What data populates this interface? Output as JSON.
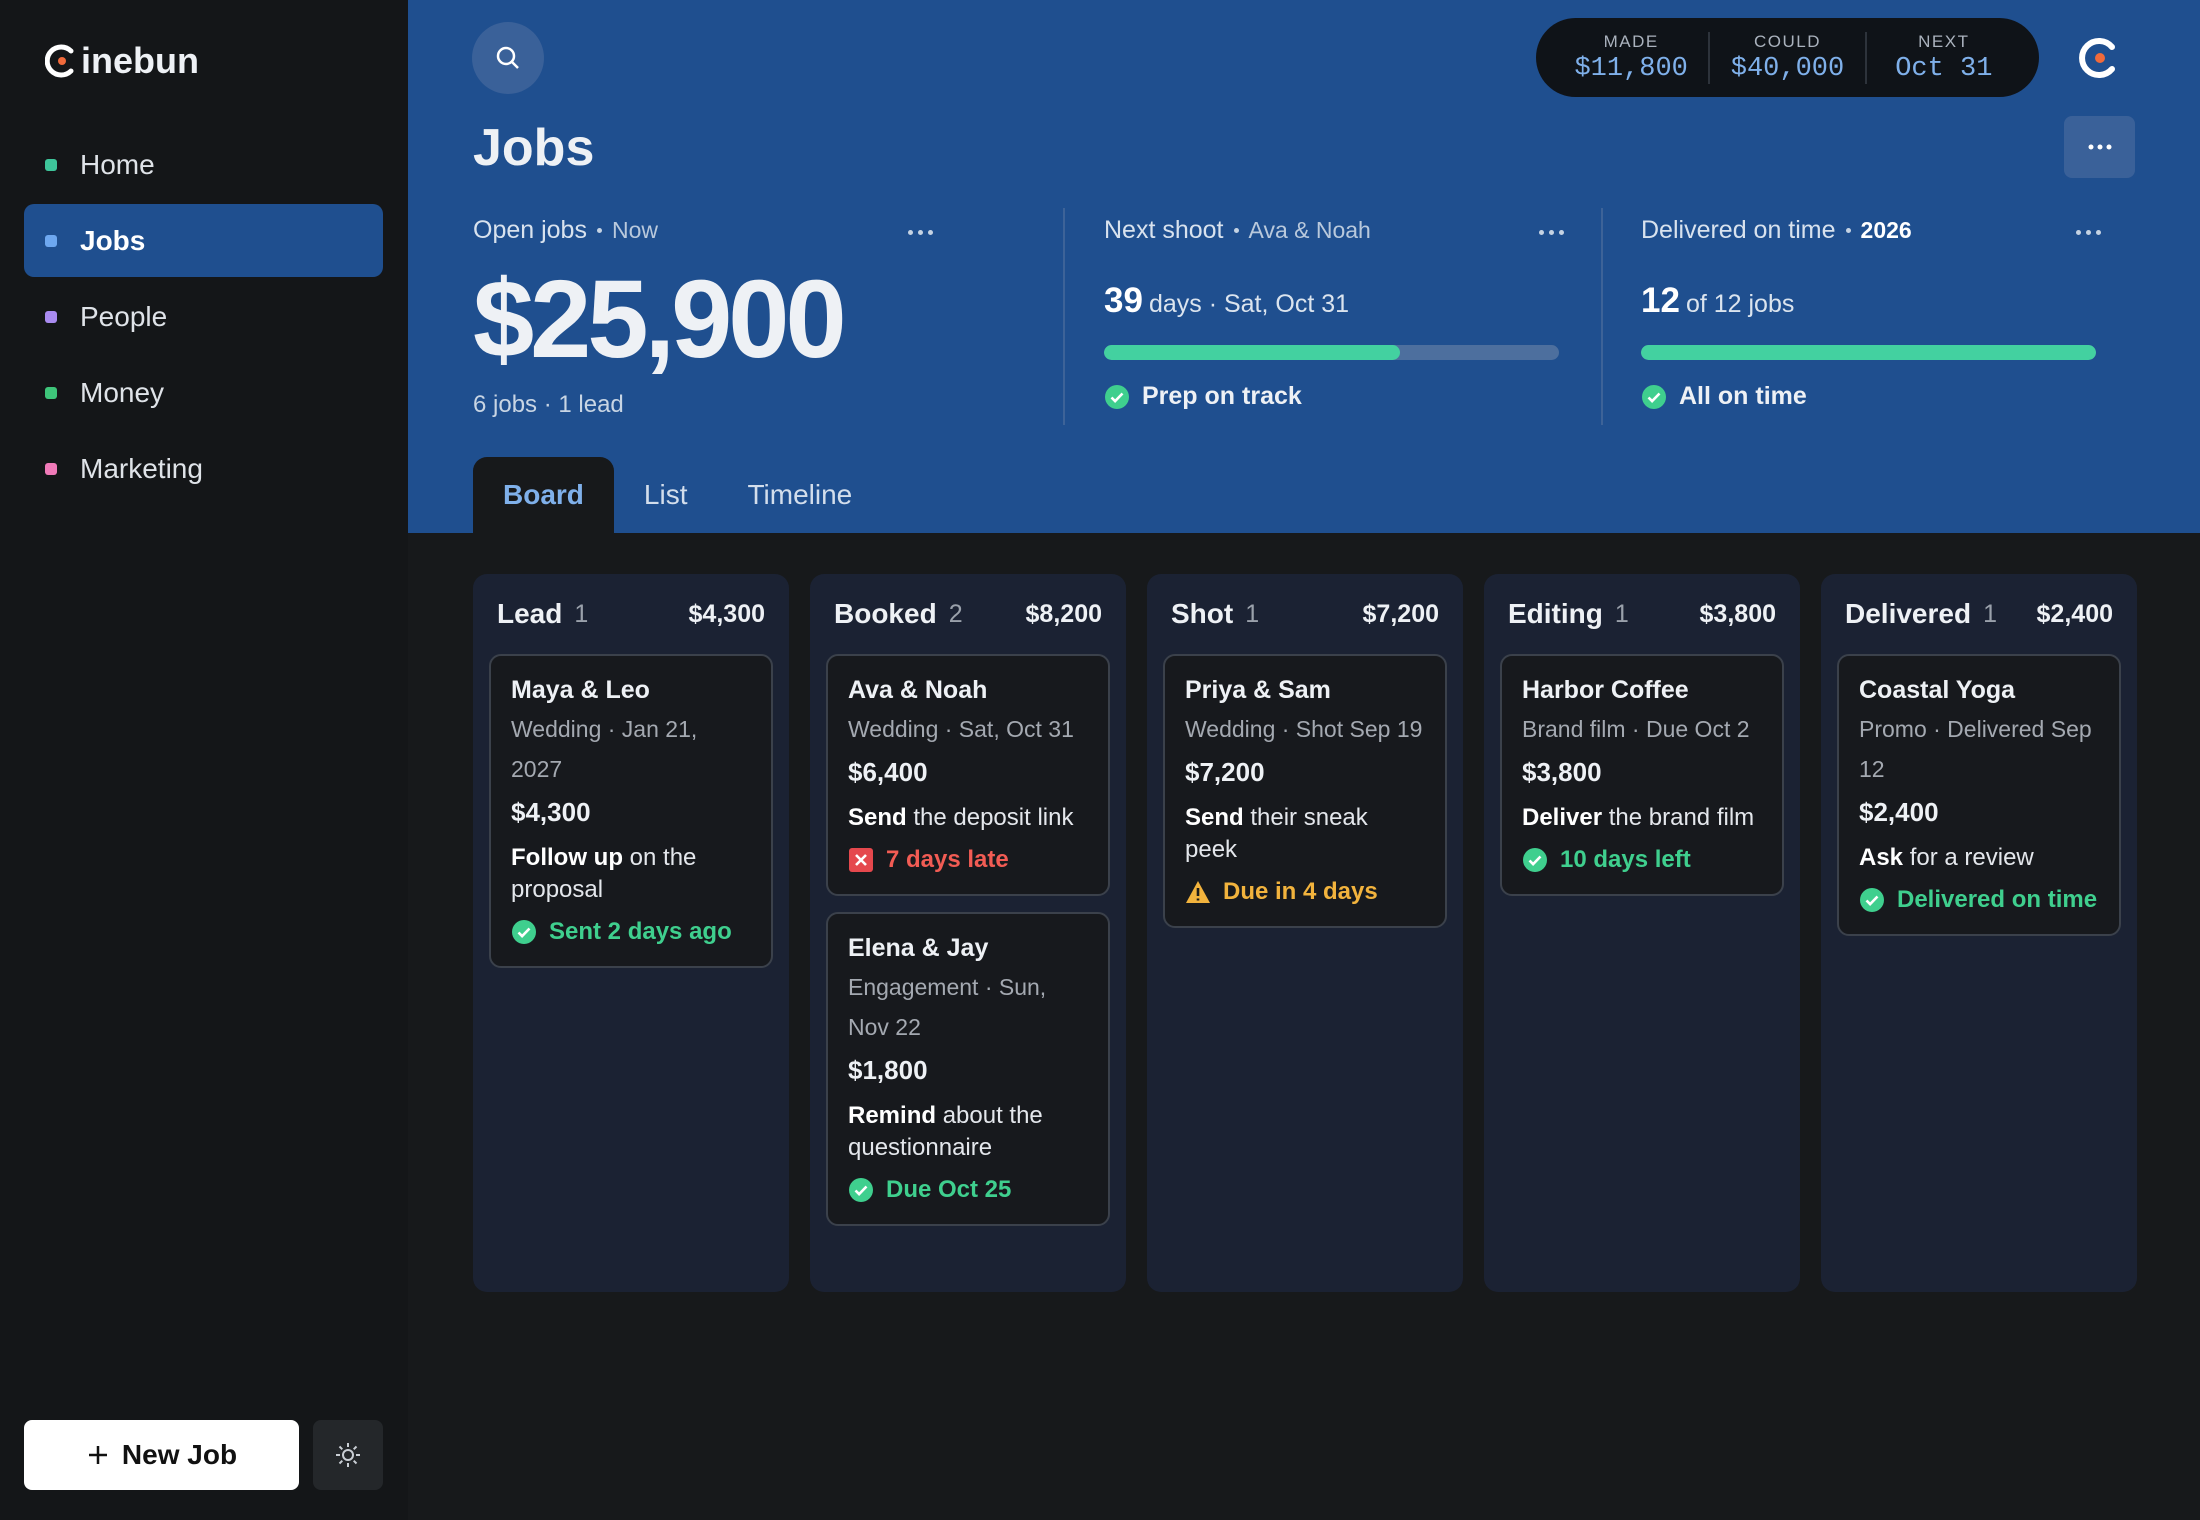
{
  "brand": "inebun",
  "nav": [
    "Home",
    "Jobs",
    "People",
    "Money",
    "Marketing"
  ],
  "nav_active": 1,
  "stats": [
    {
      "label": "MADE",
      "value": "$11,800"
    },
    {
      "label": "COULD",
      "value": "$40,000"
    },
    {
      "label": "NEXT",
      "value": "Oct 31"
    }
  ],
  "page_title": "Jobs",
  "summary": {
    "open": {
      "label": "Open jobs",
      "tag": "Now",
      "amount": "$25,900",
      "sub": "6 jobs · 1 lead"
    },
    "next": {
      "label": "Next shoot",
      "tag": "Ava & Noah",
      "big": "39",
      "rest": "days · Sat, Oct 31",
      "progress": 65,
      "status": "Prep on track"
    },
    "delivered": {
      "label": "Delivered on time",
      "tag": "2026",
      "big": "12",
      "rest": "of 12 jobs",
      "progress": 100,
      "status": "All on time"
    }
  },
  "tabs": [
    "Board",
    "List",
    "Timeline"
  ],
  "tab_active": 0,
  "columns": [
    {
      "name": "Lead",
      "count": 1,
      "total": "$4,300",
      "cards": [
        {
          "title": "Maya & Leo",
          "meta": "Wedding · Jan 21, 2027",
          "amount": "$4,300",
          "verb": "Follow up",
          "rest": "on the proposal",
          "status": "Sent 2 days ago",
          "kind": "ok"
        }
      ]
    },
    {
      "name": "Booked",
      "count": 2,
      "total": "$8,200",
      "cards": [
        {
          "title": "Ava & Noah",
          "meta": "Wedding · Sat, Oct 31",
          "amount": "$6,400",
          "verb": "Send",
          "rest": "the deposit link",
          "status": "7 days late",
          "kind": "late"
        },
        {
          "title": "Elena & Jay",
          "meta": "Engagement · Sun, Nov 22",
          "amount": "$1,800",
          "verb": "Remind",
          "rest": "about the questionnaire",
          "status": "Due Oct 25",
          "kind": "ok"
        }
      ]
    },
    {
      "name": "Shot",
      "count": 1,
      "total": "$7,200",
      "cards": [
        {
          "title": "Priya & Sam",
          "meta": "Wedding · Shot Sep 19",
          "amount": "$7,200",
          "verb": "Send",
          "rest": "their sneak peek",
          "status": "Due in 4 days",
          "kind": "warn"
        }
      ]
    },
    {
      "name": "Editing",
      "count": 1,
      "total": "$3,800",
      "cards": [
        {
          "title": "Harbor Coffee",
          "meta": "Brand film · Due Oct 2",
          "amount": "$3,800",
          "verb": "Deliver",
          "rest": "the brand film",
          "status": "10 days left",
          "kind": "ok"
        }
      ]
    },
    {
      "name": "Delivered",
      "count": 1,
      "total": "$2,400",
      "cards": [
        {
          "title": "Coastal Yoga",
          "meta": "Promo · Delivered Sep 12",
          "amount": "$2,400",
          "verb": "Ask",
          "rest": "for a review",
          "status": "Delivered on time",
          "kind": "ok"
        }
      ]
    }
  ],
  "new_job": "New Job"
}
